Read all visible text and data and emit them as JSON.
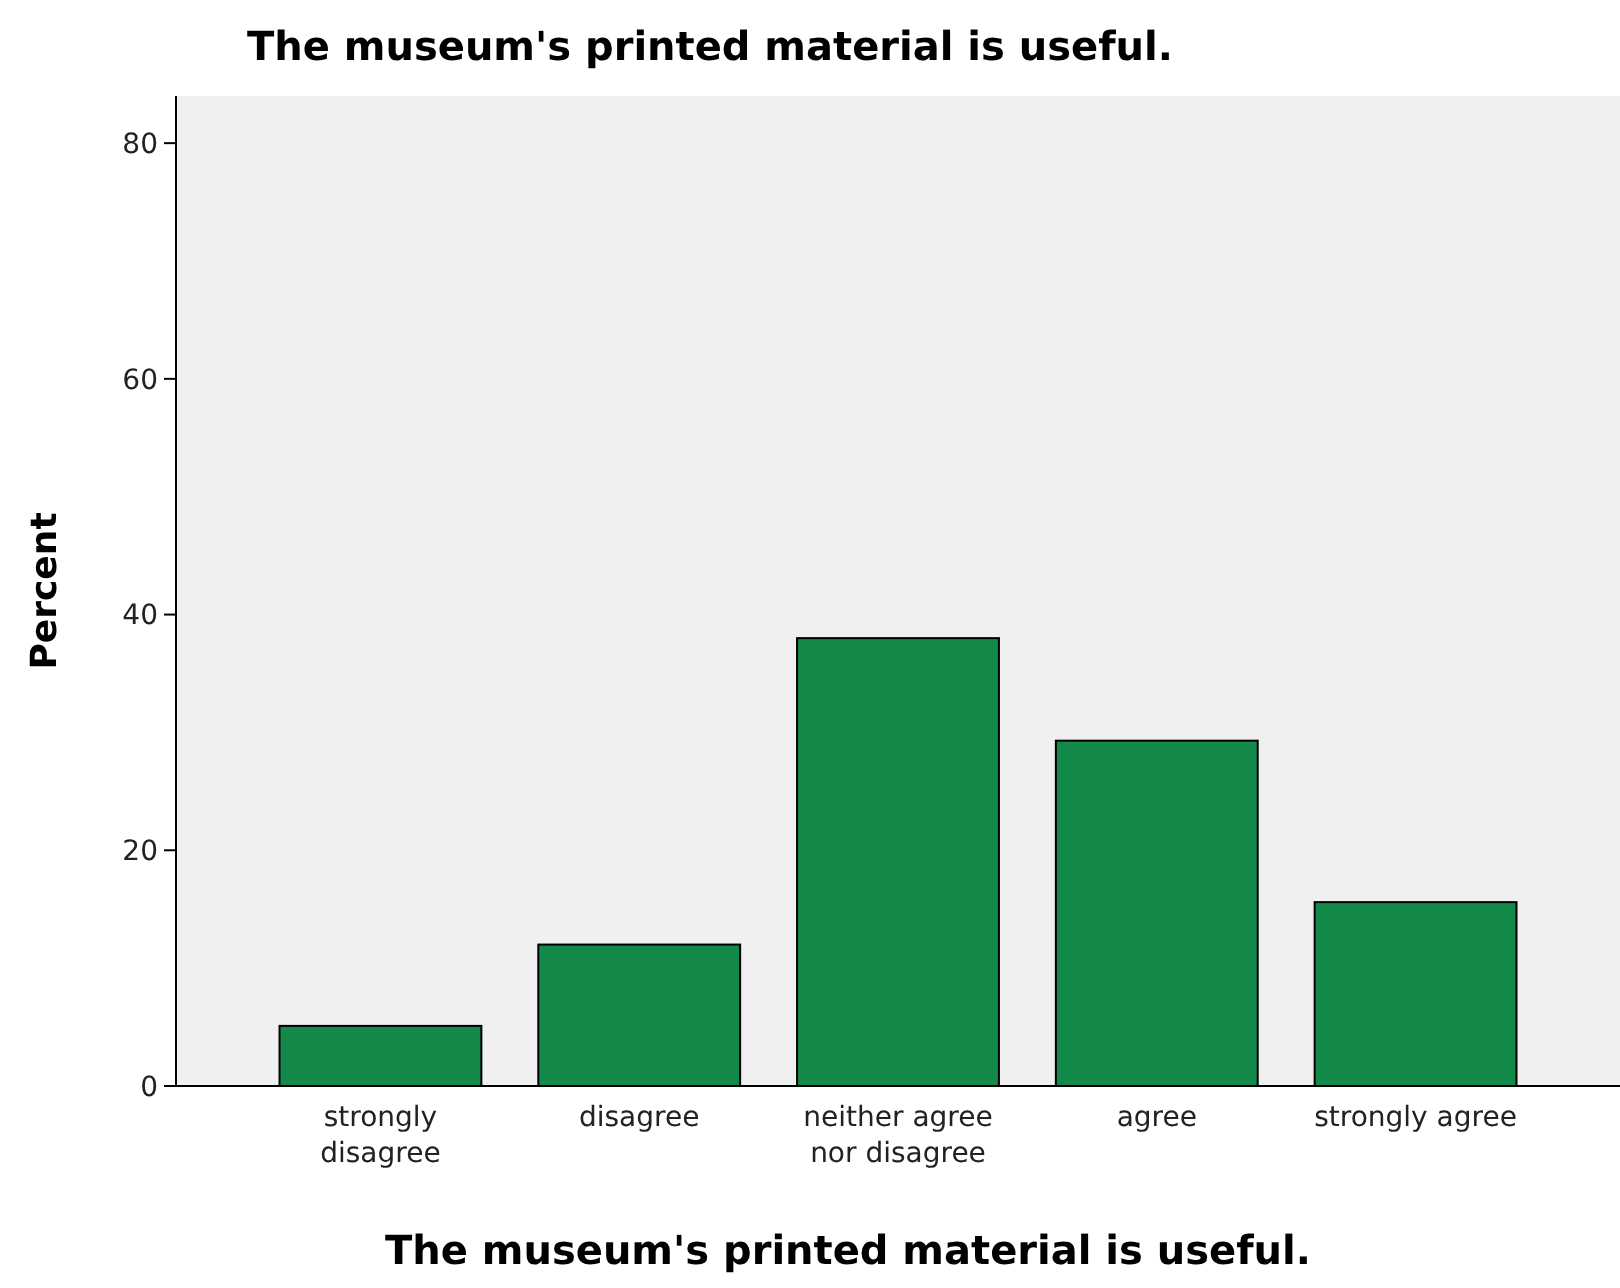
{
  "chart_data": {
    "type": "bar",
    "title": "The museum's printed material is useful.",
    "xlabel": "The museum's printed material is useful.",
    "ylabel": "Percent",
    "categories": [
      "strongly disagree",
      "disagree",
      "neither agree nor disagree",
      "agree",
      "strongly agree"
    ],
    "values": [
      5.1,
      12.0,
      38.0,
      29.3,
      15.6
    ],
    "color": "#138a4a",
    "ylim": [
      0,
      84
    ],
    "yticks": [
      0,
      20,
      40,
      60,
      80
    ],
    "grid": false
  }
}
